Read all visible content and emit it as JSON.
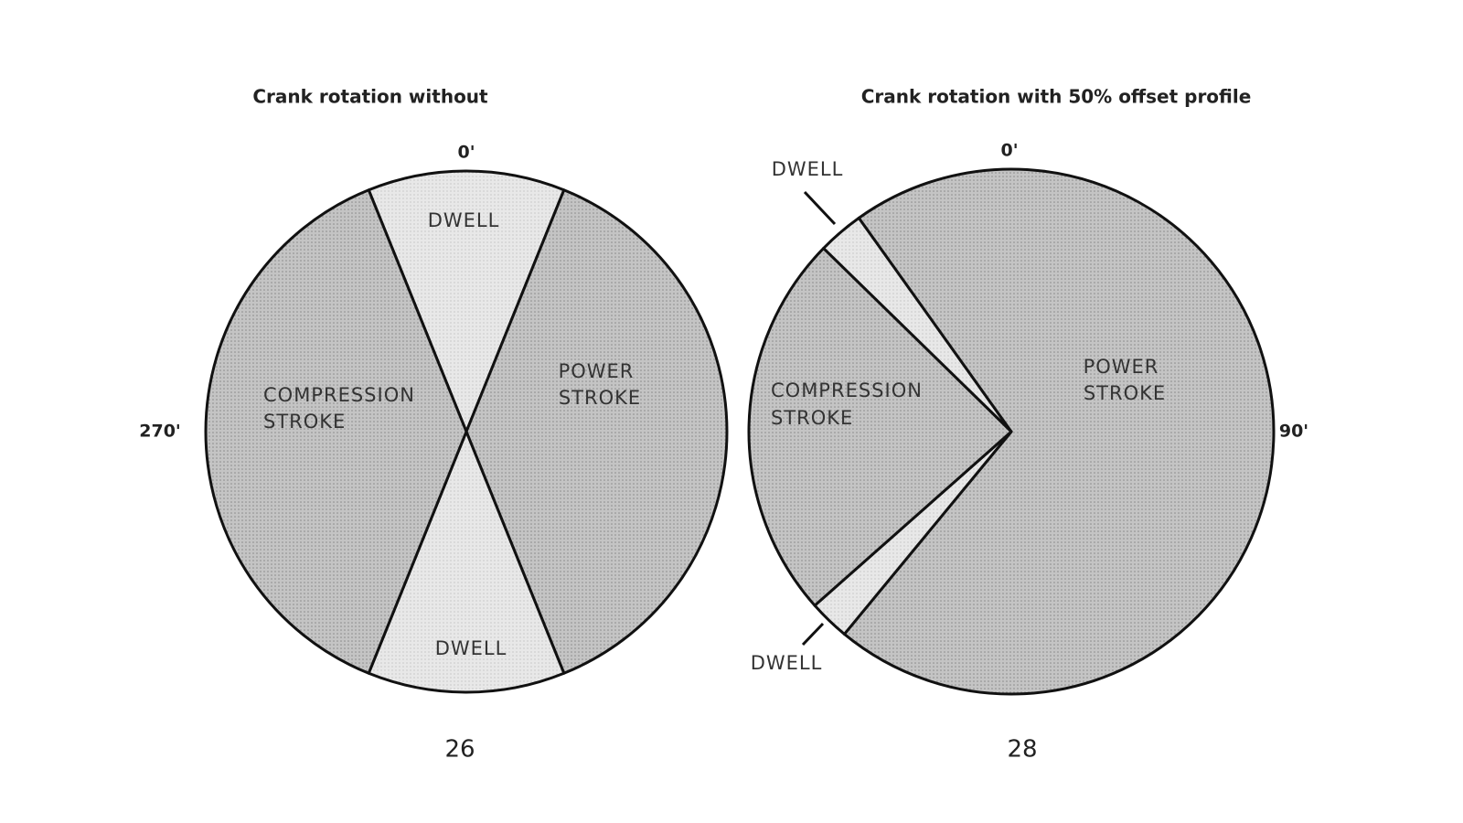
{
  "figures": [
    {
      "title": "Crank rotation without",
      "angle_labels": [
        "0'",
        "270'"
      ],
      "regions": [
        {
          "lines": [
            "DWELL"
          ]
        },
        {
          "lines": [
            "POWER",
            "STROKE"
          ]
        },
        {
          "lines": [
            "DWELL"
          ]
        },
        {
          "lines": [
            "COMPRESSION",
            "STROKE"
          ]
        }
      ],
      "figure_number": "26"
    },
    {
      "title": "Crank rotation with 50% offset profile",
      "angle_labels": [
        "0'",
        "90'"
      ],
      "regions": [
        {
          "lines": [
            "DWELL"
          ]
        },
        {
          "lines": [
            "POWER",
            "STROKE"
          ]
        },
        {
          "lines": [
            "DWELL"
          ]
        },
        {
          "lines": [
            "COMPRESSION",
            "STROKE"
          ]
        }
      ],
      "figure_number": "28"
    }
  ]
}
